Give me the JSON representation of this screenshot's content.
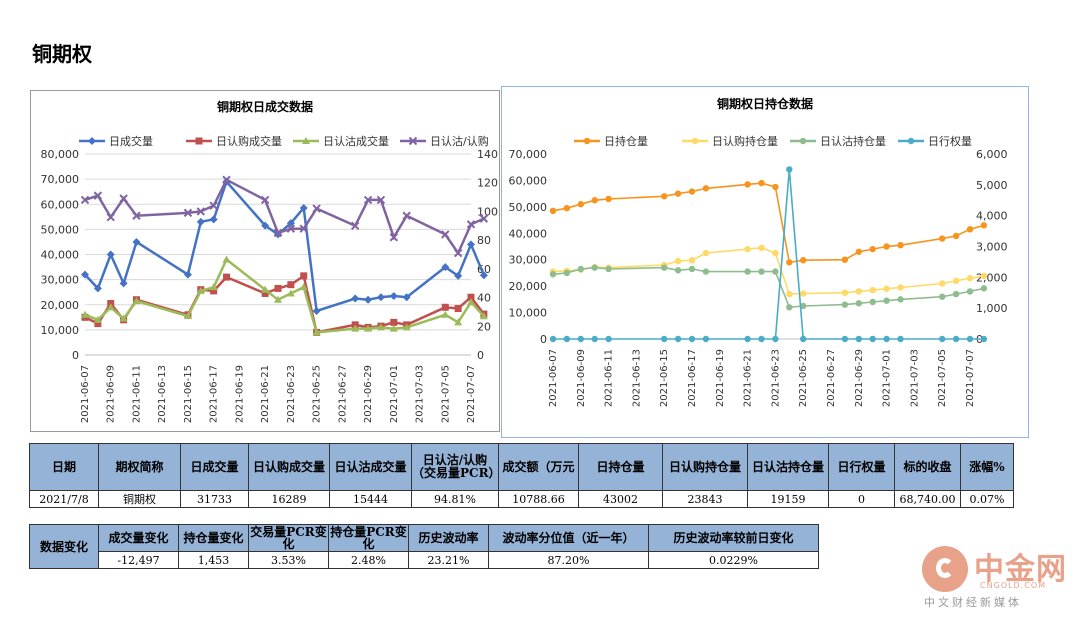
{
  "page": {
    "title": "铜期权"
  },
  "chart_data": [
    {
      "type": "line",
      "title": "铜期权日成交数据",
      "legend_position": "top",
      "x": [
        "2021-06-07",
        "2021-06-08",
        "2021-06-09",
        "2021-06-10",
        "2021-06-11",
        "2021-06-15",
        "2021-06-16",
        "2021-06-17",
        "2021-06-18",
        "2021-06-21",
        "2021-06-22",
        "2021-06-23",
        "2021-06-24",
        "2021-06-25",
        "2021-06-28",
        "2021-06-29",
        "2021-06-30",
        "2021-07-01",
        "2021-07-02",
        "2021-07-05",
        "2021-07-06",
        "2021-07-07",
        "2021-07-08"
      ],
      "x_tick_labels": [
        "2021-06-07",
        "2021-06-09",
        "2021-06-11",
        "2021-06-13",
        "2021-06-15",
        "2021-06-17",
        "2021-06-19",
        "2021-06-21",
        "2021-06-23",
        "2021-06-25",
        "2021-06-27",
        "2021-06-29",
        "2021-07-01",
        "2021-07-03",
        "2021-07-05",
        "2021-07-07"
      ],
      "ylim": [
        0,
        80000
      ],
      "y_ticks": [
        "0",
        "10,000",
        "20,000",
        "30,000",
        "40,000",
        "50,000",
        "60,000",
        "70,000",
        "80,000"
      ],
      "y2lim": [
        0,
        140
      ],
      "y2_ticks": [
        "0",
        "20",
        "40",
        "60",
        "80",
        "100",
        "120",
        "140"
      ],
      "grid": true,
      "series": [
        {
          "name": "日成交量",
          "axis": "left",
          "color": "#4472c4",
          "marker": "diamond",
          "values": [
            32000,
            26500,
            40000,
            28500,
            45000,
            32000,
            53000,
            54000,
            69000,
            51500,
            48000,
            52500,
            58500,
            17500,
            22500,
            22000,
            23000,
            23500,
            23000,
            35000,
            31500,
            44000,
            31733
          ]
        },
        {
          "name": "日认购成交量",
          "axis": "left",
          "color": "#c0504d",
          "marker": "square",
          "values": [
            15000,
            12500,
            20500,
            14000,
            22000,
            16000,
            26000,
            25500,
            31000,
            24500,
            26500,
            28000,
            31500,
            9000,
            12000,
            11000,
            11500,
            13000,
            12000,
            19000,
            18500,
            23000,
            16289
          ]
        },
        {
          "name": "日认沽成交量",
          "axis": "left",
          "color": "#9bbb59",
          "marker": "triangle",
          "values": [
            16000,
            14000,
            19000,
            14500,
            21500,
            15500,
            25500,
            27000,
            38000,
            26000,
            22000,
            24500,
            27000,
            9000,
            10500,
            10500,
            11000,
            10500,
            11000,
            16000,
            13000,
            21000,
            15444
          ]
        },
        {
          "name": "日认沽/认购",
          "axis": "right",
          "color": "#8064a2",
          "marker": "x",
          "values": [
            108,
            111,
            96,
            109,
            97,
            99,
            100,
            104,
            122,
            108,
            85,
            88,
            88,
            102,
            90,
            108,
            108,
            82,
            97,
            84,
            71,
            91,
            95
          ]
        }
      ]
    },
    {
      "type": "line",
      "title": "铜期权日持仓数据",
      "legend_position": "top",
      "x": [
        "2021-06-07",
        "2021-06-08",
        "2021-06-09",
        "2021-06-10",
        "2021-06-11",
        "2021-06-15",
        "2021-06-16",
        "2021-06-17",
        "2021-06-18",
        "2021-06-21",
        "2021-06-22",
        "2021-06-23",
        "2021-06-24",
        "2021-06-25",
        "2021-06-28",
        "2021-06-29",
        "2021-06-30",
        "2021-07-01",
        "2021-07-02",
        "2021-07-05",
        "2021-07-06",
        "2021-07-07",
        "2021-07-08"
      ],
      "x_tick_labels": [
        "2021-06-07",
        "2021-06-09",
        "2021-06-11",
        "2021-06-13",
        "2021-06-15",
        "2021-06-17",
        "2021-06-19",
        "2021-06-21",
        "2021-06-23",
        "2021-06-25",
        "2021-06-27",
        "2021-06-29",
        "2021-07-01",
        "2021-07-03",
        "2021-07-05",
        "2021-07-07"
      ],
      "ylim": [
        0,
        70000
      ],
      "y_ticks": [
        "0",
        "10,000",
        "20,000",
        "30,000",
        "40,000",
        "50,000",
        "60,000",
        "70,000"
      ],
      "y2lim": [
        0,
        6000
      ],
      "y2_ticks": [
        "0",
        "1,000",
        "2,000",
        "3,000",
        "4,000",
        "5,000",
        "6,000"
      ],
      "grid": false,
      "series": [
        {
          "name": "日持仓量",
          "axis": "left",
          "color": "#f7941d",
          "marker": "circle",
          "values": [
            48500,
            49500,
            51000,
            52500,
            53000,
            54000,
            55000,
            55800,
            57000,
            58500,
            59000,
            57500,
            29000,
            29800,
            30000,
            33000,
            34000,
            35000,
            35500,
            38000,
            39000,
            41500,
            43002
          ]
        },
        {
          "name": "日认购持仓量",
          "axis": "left",
          "color": "#ffd966",
          "marker": "circle",
          "values": [
            25500,
            25800,
            26200,
            27200,
            27000,
            28000,
            29500,
            29800,
            32500,
            34000,
            34500,
            32500,
            17000,
            17200,
            17500,
            18000,
            18500,
            19000,
            19500,
            21000,
            22000,
            23000,
            23843
          ]
        },
        {
          "name": "日认沽持仓量",
          "axis": "left",
          "color": "#8fbc8f",
          "marker": "circle",
          "values": [
            24500,
            25000,
            26500,
            27000,
            26500,
            27000,
            26000,
            26500,
            25500,
            25500,
            25500,
            25500,
            12000,
            12500,
            13000,
            13500,
            14000,
            14500,
            15000,
            16000,
            17000,
            18000,
            19159
          ]
        },
        {
          "name": "日行权量",
          "axis": "right",
          "color": "#4bacc6",
          "marker": "circle",
          "values": [
            0,
            0,
            0,
            0,
            0,
            0,
            0,
            0,
            0,
            0,
            0,
            0,
            5500,
            0,
            0,
            0,
            0,
            0,
            0,
            0,
            0,
            0,
            0
          ]
        }
      ]
    }
  ],
  "table1": {
    "headers": [
      "日期",
      "期权简称",
      "日成交量",
      "日认购成交量",
      "日认沽成交量",
      "日认沽/认购（交易量PCR）",
      "成交额（万元",
      "日持仓量",
      "日认购持仓量",
      "日认沽持仓量",
      "日行权量",
      "标的收盘",
      "涨幅%"
    ],
    "row": [
      "2021/7/8",
      "铜期权",
      "31733",
      "16289",
      "15444",
      "94.81%",
      "10788.66",
      "43002",
      "23843",
      "19159",
      "0",
      "68,740.00",
      "0.07%"
    ]
  },
  "table2": {
    "row_label": "数据变化",
    "headers": [
      "成交量变化",
      "持仓量变化",
      "交易量PCR变化",
      "持仓量PCR变化",
      "历史波动率",
      "波动率分位值（近一年）",
      "历史波动率较前日变化"
    ],
    "row": [
      "-12,497",
      "1,453",
      "3.53%",
      "2.48%",
      "23.21%",
      "87.20%",
      "0.0229%"
    ],
    "highlight_colors": {
      "percentile": "#f4777a",
      "hv_change": "#fbed9d"
    }
  },
  "logo": {
    "name": "中金网",
    "domain": "CNGOLD.COM",
    "tagline": "中文财经新媒体"
  }
}
